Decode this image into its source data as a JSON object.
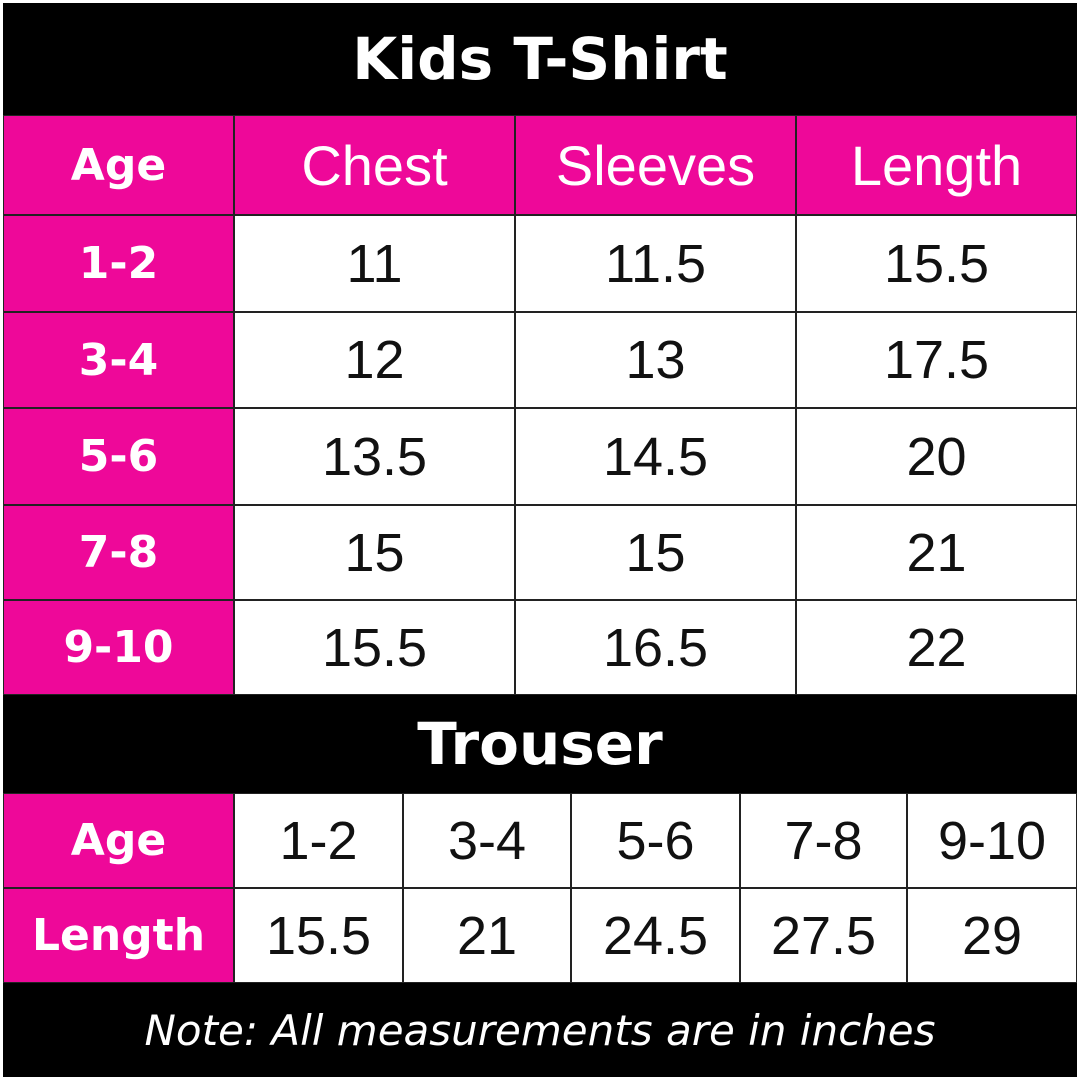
{
  "colors": {
    "accent": "#ee0899",
    "band": "#000000",
    "cell": "#ffffff"
  },
  "tshirt": {
    "title": "Kids T-Shirt",
    "headers": [
      "Age",
      "Chest",
      "Sleeves",
      "Length"
    ],
    "rows": [
      [
        "1-2",
        "11",
        "11.5",
        "15.5"
      ],
      [
        "3-4",
        "12",
        "13",
        "17.5"
      ],
      [
        "5-6",
        "13.5",
        "14.5",
        "20"
      ],
      [
        "7-8",
        "15",
        "15",
        "21"
      ],
      [
        "9-10",
        "15.5",
        "16.5",
        "22"
      ]
    ]
  },
  "trouser": {
    "title": "Trouser",
    "age_label": "Age",
    "ages": [
      "1-2",
      "3-4",
      "5-6",
      "7-8",
      "9-10"
    ],
    "length_label": "Length",
    "lengths": [
      "15.5",
      "21",
      "24.5",
      "27.5",
      "29"
    ]
  },
  "note": "Note: All measurements are in inches"
}
